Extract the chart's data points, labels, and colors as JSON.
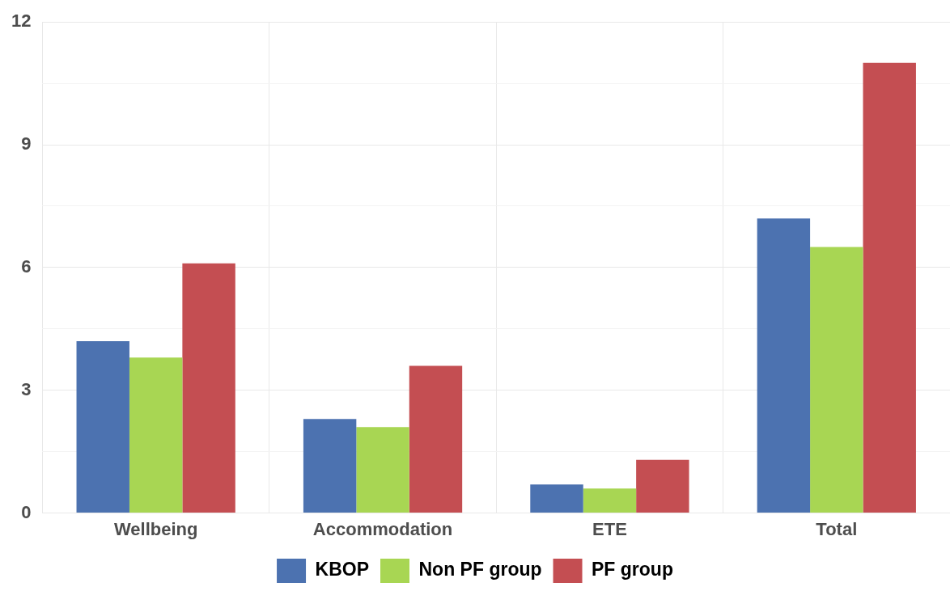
{
  "chart_data": {
    "type": "bar",
    "categories": [
      "Wellbeing",
      "Accommodation",
      "ETE",
      "Total"
    ],
    "series": [
      {
        "name": "KBOP",
        "color": "#4c72b0",
        "values": [
          4.2,
          2.3,
          0.7,
          7.2
        ]
      },
      {
        "name": "Non PF group",
        "color": "#a8d653",
        "values": [
          3.8,
          2.1,
          0.6,
          6.5
        ]
      },
      {
        "name": "PF group",
        "color": "#c44e52",
        "values": [
          6.1,
          3.6,
          1.3,
          11.0
        ]
      }
    ],
    "ylim": [
      0,
      12
    ],
    "yticks": [
      0,
      {
        "value": 1.5,
        "label": null
      },
      3,
      {
        "value": 4.5,
        "label": null
      },
      6,
      {
        "value": 7.5,
        "label": null
      },
      9,
      {
        "value": 10.5,
        "label": null
      },
      12
    ],
    "grid": true,
    "legend": "bottom"
  }
}
